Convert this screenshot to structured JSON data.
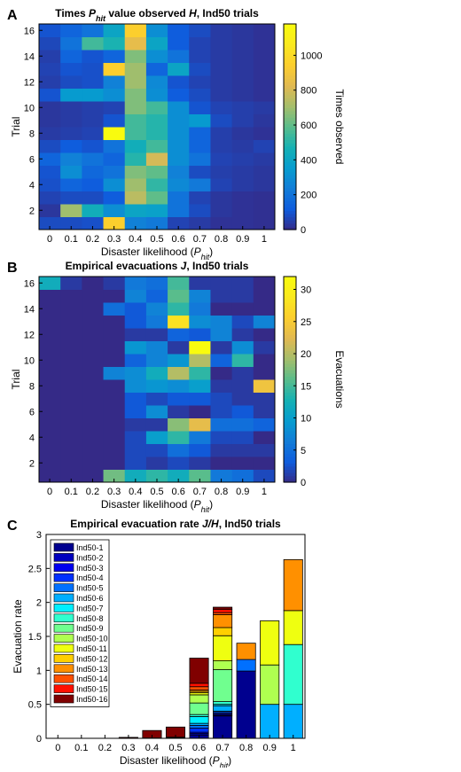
{
  "panels": {
    "a": {
      "letter": "A",
      "title_parts": [
        "Times ",
        "P",
        "hit",
        " value observed ",
        "H",
        ", Ind50 trials"
      ],
      "ylabel": "Trial",
      "xlabel_parts": [
        "Disaster likelihood (",
        "P",
        "hit",
        ")"
      ],
      "colorbar_label": "Times observed"
    },
    "b": {
      "letter": "B",
      "title_parts": [
        "Empirical evacuations ",
        "J",
        ", Ind50 trials"
      ],
      "ylabel": "Trial",
      "xlabel_parts": [
        "Disaster likelihood (",
        "P",
        "hit",
        ")"
      ],
      "colorbar_label": "Evacuations"
    },
    "c": {
      "letter": "C",
      "title_parts": [
        "Empirical evacuation rate ",
        "J/H",
        ", Ind50 trials"
      ],
      "ylabel": "Evacuation rate",
      "xlabel_parts": [
        "Disaster likelihood (",
        "P",
        "hit",
        ")"
      ]
    }
  },
  "chart_data": [
    {
      "type": "heatmap",
      "x": [
        "0",
        "0.1",
        "0.2",
        "0.3",
        "0.4",
        "0.5",
        "0.6",
        "0.7",
        "0.8",
        "0.9",
        "1"
      ],
      "y_ticks": [
        2,
        4,
        6,
        8,
        10,
        12,
        14,
        16
      ],
      "y_range": [
        1,
        16
      ],
      "colorbar_ticks": [
        0,
        200,
        400,
        600,
        800,
        1000
      ],
      "clim": [
        0,
        1180
      ],
      "colormap": "parula",
      "z": [
        [
          80,
          80,
          90,
          950,
          250,
          220,
          60,
          40,
          20,
          20,
          15
        ],
        [
          30,
          700,
          450,
          300,
          400,
          380,
          200,
          80,
          30,
          20,
          15
        ],
        [
          60,
          80,
          80,
          120,
          750,
          600,
          200,
          60,
          30,
          20,
          15
        ],
        [
          90,
          150,
          120,
          300,
          700,
          520,
          280,
          220,
          60,
          40,
          30
        ],
        [
          100,
          300,
          160,
          200,
          650,
          600,
          250,
          80,
          50,
          40,
          30
        ],
        [
          150,
          250,
          200,
          150,
          500,
          800,
          300,
          200,
          60,
          50,
          40
        ],
        [
          80,
          120,
          100,
          200,
          450,
          550,
          300,
          150,
          50,
          40,
          60
        ],
        [
          40,
          50,
          60,
          1180,
          550,
          500,
          300,
          150,
          50,
          30,
          20
        ],
        [
          30,
          40,
          50,
          100,
          550,
          500,
          300,
          350,
          80,
          50,
          30
        ],
        [
          30,
          40,
          50,
          60,
          650,
          550,
          300,
          100,
          60,
          50,
          40
        ],
        [
          100,
          350,
          350,
          300,
          650,
          300,
          120,
          80,
          40,
          30,
          20
        ],
        [
          50,
          80,
          90,
          250,
          700,
          280,
          100,
          60,
          40,
          30,
          20
        ],
        [
          60,
          100,
          90,
          950,
          700,
          150,
          400,
          80,
          40,
          30,
          20
        ],
        [
          50,
          150,
          100,
          150,
          650,
          300,
          200,
          60,
          40,
          30,
          20
        ],
        [
          70,
          200,
          550,
          480,
          850,
          400,
          120,
          60,
          40,
          30,
          20
        ],
        [
          100,
          150,
          200,
          400,
          950,
          300,
          120,
          80,
          40,
          30,
          20
        ]
      ]
    },
    {
      "type": "heatmap",
      "x": [
        "0",
        "0.1",
        "0.2",
        "0.3",
        "0.4",
        "0.5",
        "0.6",
        "0.7",
        "0.8",
        "0.9",
        "1"
      ],
      "y_ticks": [
        2,
        4,
        6,
        8,
        10,
        12,
        14,
        16
      ],
      "y_range": [
        1,
        16
      ],
      "colorbar_ticks": [
        0,
        5,
        10,
        15,
        20,
        25,
        30
      ],
      "clim": [
        0,
        32
      ],
      "colormap": "parula",
      "z": [
        [
          0,
          0,
          0,
          17,
          12,
          14,
          12,
          16,
          6,
          5,
          2
        ],
        [
          0,
          0,
          0,
          0,
          2,
          1,
          2,
          1,
          0,
          0,
          0
        ],
        [
          0,
          0,
          0,
          0,
          2,
          2,
          5,
          3,
          1,
          1,
          1
        ],
        [
          0,
          0,
          0,
          0,
          2,
          10,
          14,
          6,
          2,
          2,
          0
        ],
        [
          0,
          0,
          0,
          0,
          1,
          1,
          18,
          23,
          5,
          5,
          4
        ],
        [
          0,
          0,
          0,
          0,
          3,
          8,
          1,
          0,
          2,
          3,
          1
        ],
        [
          0,
          0,
          0,
          0,
          3,
          2,
          3,
          3,
          2,
          1,
          1
        ],
        [
          0,
          0,
          0,
          0,
          8,
          9,
          8,
          10,
          1,
          1,
          24
        ],
        [
          0,
          0,
          0,
          7,
          8,
          12,
          20,
          14,
          0,
          1,
          0
        ],
        [
          0,
          0,
          0,
          0,
          4,
          7,
          9,
          20,
          4,
          14,
          0
        ],
        [
          0,
          0,
          0,
          0,
          9,
          7,
          1,
          32,
          1,
          8,
          1
        ],
        [
          0,
          0,
          0,
          0,
          1,
          1,
          4,
          3,
          7,
          1,
          0
        ],
        [
          0,
          0,
          0,
          0,
          3,
          6,
          28,
          8,
          7,
          2,
          7
        ],
        [
          0,
          0,
          0,
          5,
          3,
          7,
          14,
          6,
          0,
          0,
          0
        ],
        [
          0,
          0,
          0,
          0,
          7,
          4,
          16,
          7,
          1,
          1,
          0
        ],
        [
          12,
          1,
          0,
          1,
          6,
          5,
          15,
          1,
          1,
          1,
          0
        ]
      ]
    },
    {
      "type": "bar",
      "stacked": true,
      "categories": [
        "0",
        "0.1",
        "0.2",
        "0.3",
        "0.4",
        "0.5",
        "0.6",
        "0.7",
        "0.8",
        "0.9",
        "1"
      ],
      "ylim": [
        0,
        3
      ],
      "y_ticks": [
        "0",
        "0.5",
        "1",
        "1.5",
        "2",
        "2.5",
        "3"
      ],
      "legend_position": "top-left",
      "series": [
        {
          "name": "Ind50-1",
          "color": "#00008f",
          "values": [
            0,
            0,
            0,
            0.002,
            0.005,
            0.006,
            0.05,
            0.33,
            0.99,
            0,
            0
          ]
        },
        {
          "name": "Ind50-2",
          "color": "#0000bf",
          "values": [
            0,
            0,
            0,
            0,
            0,
            0,
            0.02,
            0.01,
            0,
            0,
            0
          ]
        },
        {
          "name": "Ind50-3",
          "color": "#0000ef",
          "values": [
            0,
            0,
            0,
            0,
            0,
            0,
            0.02,
            0.02,
            0,
            0,
            0
          ]
        },
        {
          "name": "Ind50-4",
          "color": "#0030ff",
          "values": [
            0,
            0,
            0,
            0,
            0,
            0.01,
            0.06,
            0.02,
            0,
            0,
            0
          ]
        },
        {
          "name": "Ind50-5",
          "color": "#0070ff",
          "values": [
            0,
            0,
            0,
            0,
            0,
            0,
            0.04,
            0.02,
            0.17,
            0,
            0
          ]
        },
        {
          "name": "Ind50-6",
          "color": "#00afff",
          "values": [
            0,
            0,
            0,
            0,
            0,
            0,
            0.03,
            0.08,
            0,
            0.5,
            0.5
          ]
        },
        {
          "name": "Ind50-7",
          "color": "#00efff",
          "values": [
            0,
            0,
            0,
            0,
            0,
            0,
            0.1,
            0.02,
            0,
            0,
            0
          ]
        },
        {
          "name": "Ind50-8",
          "color": "#30ffcf",
          "values": [
            0,
            0,
            0,
            0,
            0,
            0,
            0.03,
            0.04,
            0,
            0,
            0.88
          ]
        },
        {
          "name": "Ind50-9",
          "color": "#70ff8f",
          "values": [
            0,
            0,
            0,
            0,
            0,
            0,
            0.17,
            0.47,
            0,
            0,
            0
          ]
        },
        {
          "name": "Ind50-10",
          "color": "#afff50",
          "values": [
            0,
            0,
            0,
            0,
            0,
            0,
            0.12,
            0.13,
            0,
            0.58,
            0
          ]
        },
        {
          "name": "Ind50-11",
          "color": "#efff10",
          "values": [
            0,
            0,
            0,
            0,
            0,
            0,
            0.03,
            0.37,
            0,
            0.65,
            0.5
          ]
        },
        {
          "name": "Ind50-12",
          "color": "#ffcf00",
          "values": [
            0,
            0,
            0,
            0,
            0,
            0,
            0.02,
            0.12,
            0,
            0,
            0
          ]
        },
        {
          "name": "Ind50-13",
          "color": "#ff9000",
          "values": [
            0,
            0,
            0,
            0,
            0,
            0,
            0.02,
            0.19,
            0.24,
            0,
            0.75
          ]
        },
        {
          "name": "Ind50-14",
          "color": "#ff5000",
          "values": [
            0,
            0,
            0,
            0,
            0,
            0,
            0.05,
            0.03,
            0,
            0,
            0
          ]
        },
        {
          "name": "Ind50-15",
          "color": "#ff1000",
          "values": [
            0,
            0,
            0,
            0,
            0,
            0,
            0.05,
            0.05,
            0,
            0,
            0
          ]
        },
        {
          "name": "Ind50-16",
          "color": "#800000",
          "values": [
            0,
            0,
            0,
            0.012,
            0.11,
            0.15,
            0.37,
            0.03,
            0,
            0,
            0
          ]
        }
      ]
    }
  ]
}
